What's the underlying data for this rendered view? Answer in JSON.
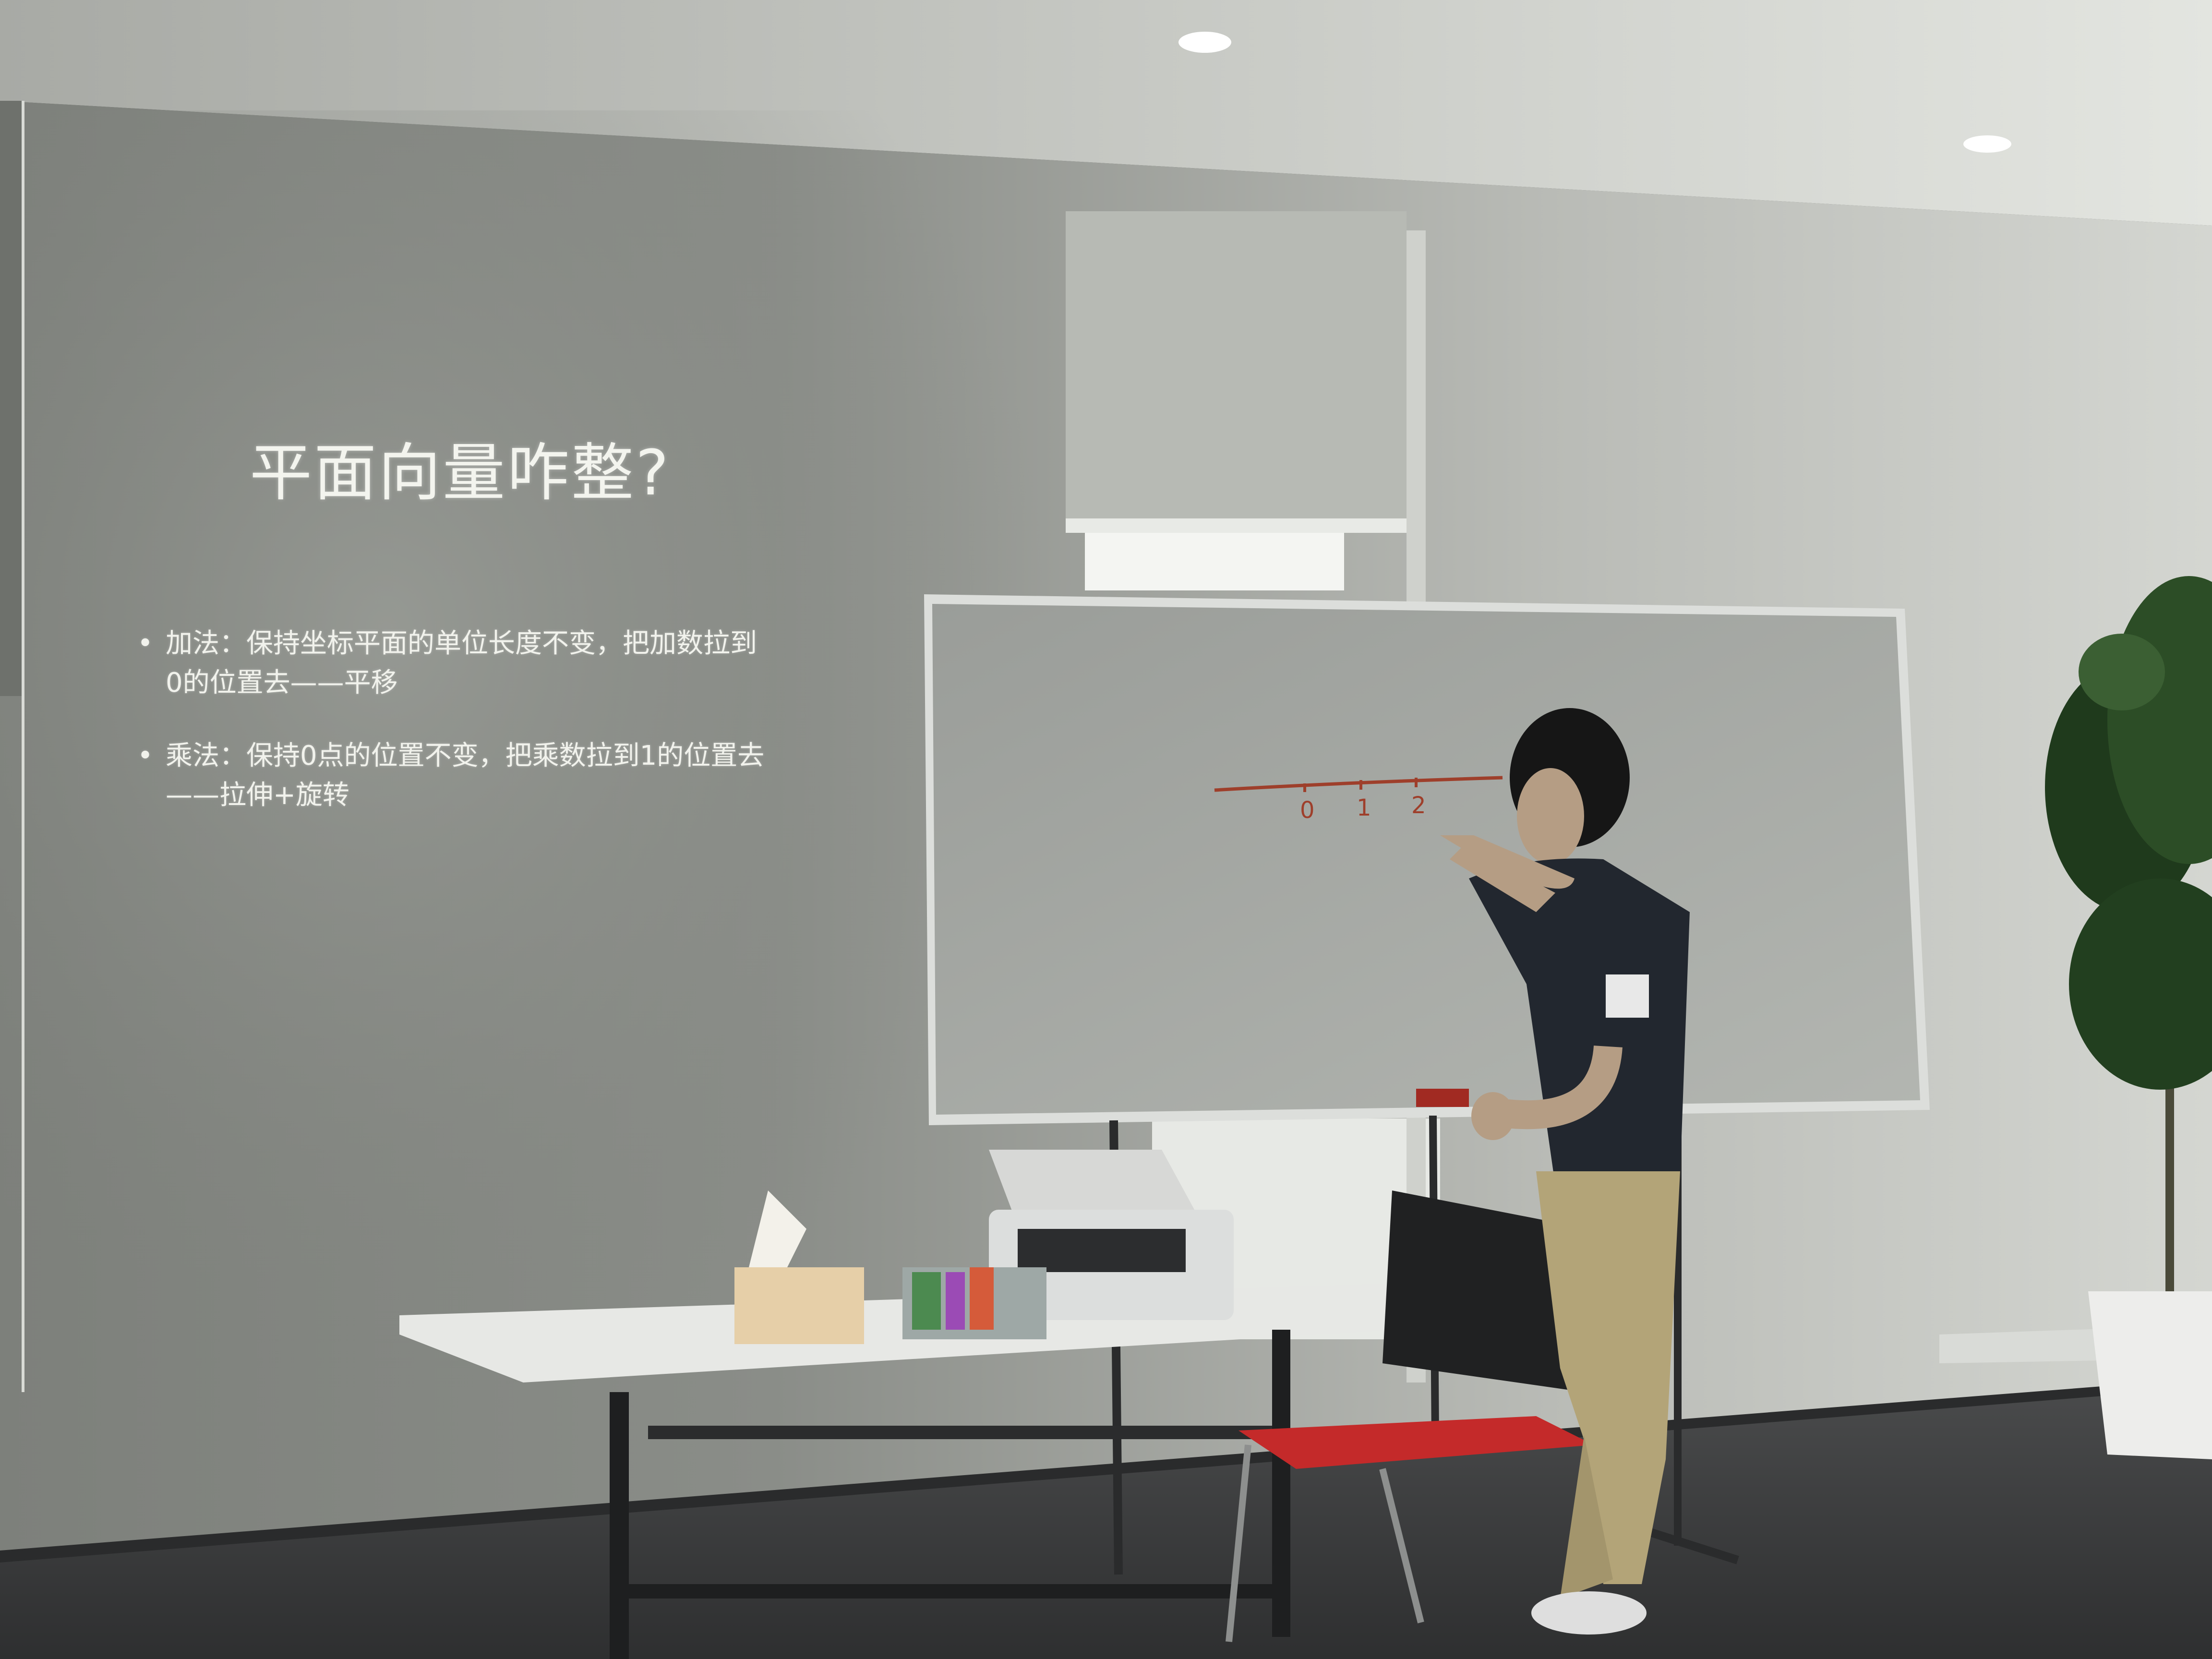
{
  "slide": {
    "title": "平面向量咋整?",
    "bullets": [
      "加法：保持坐标平面的单位长度不变，把加数拉到0的位置去——平移",
      "乘法：保持0点的位置不变，把乘数拉到1的位置去——拉伸+旋转"
    ]
  },
  "whiteboard": {
    "number_line_labels": [
      "0",
      "1",
      "2"
    ]
  },
  "colors": {
    "wall": "#8e918b",
    "ceiling": "#c9cbc6",
    "whiteboard": "#a7aaa6",
    "marker": "#a0442e",
    "floor": "#3b3c3d",
    "chair_seat": "#c42a2a"
  }
}
